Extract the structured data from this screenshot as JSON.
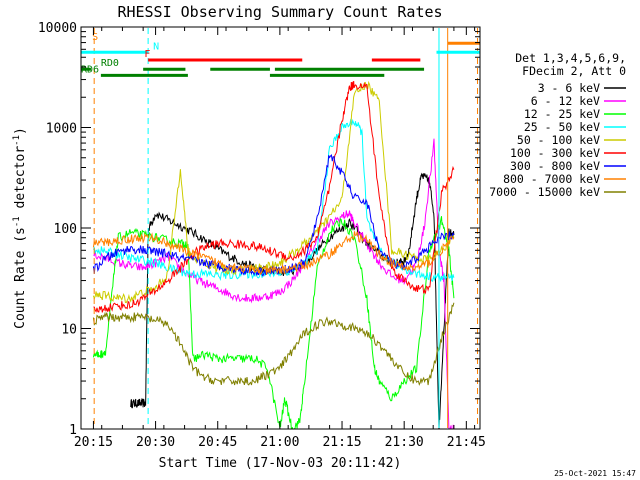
{
  "chart_data": {
    "type": "line",
    "title": "RHESSI Observing Summary Count Rates",
    "xlabel": "Start Time (17-Nov-03 20:11:42)",
    "ylabel_main": "Count Rate (s",
    "ylabel_exp1": "-1",
    "ylabel_mid": " detector",
    "ylabel_exp2": "-1",
    "ylabel_end": ")",
    "yscale": "log",
    "xlim": [
      20.2,
      21.805
    ],
    "ylim": [
      1,
      10000
    ],
    "xticks": [
      {
        "value": 20.25,
        "label": "20:15"
      },
      {
        "value": 20.5,
        "label": "20:30"
      },
      {
        "value": 20.75,
        "label": "20:45"
      },
      {
        "value": 21.0,
        "label": "21:00"
      },
      {
        "value": 21.25,
        "label": "21:15"
      },
      {
        "value": 21.5,
        "label": "21:30"
      },
      {
        "value": 21.75,
        "label": "21:45"
      }
    ],
    "yticks": [
      {
        "value": 1,
        "label": "1"
      },
      {
        "value": 10,
        "label": "10"
      },
      {
        "value": 100,
        "label": "100"
      },
      {
        "value": 1000,
        "label": "1000"
      },
      {
        "value": 10000,
        "label": "10000"
      }
    ],
    "legend": {
      "position": "right",
      "header": [
        "Det 1,3,4,5,6,9,",
        "FDecim 2, Att 0"
      ]
    },
    "series": [
      {
        "name": "3 - 6 keV",
        "color": "#000000",
        "x": [
          20.4,
          20.42,
          20.44,
          20.46,
          20.47,
          20.5,
          20.55,
          20.6,
          20.65,
          20.7,
          20.75,
          20.8,
          20.85,
          20.9,
          20.95,
          21.0,
          21.05,
          21.1,
          21.15,
          21.2,
          21.25,
          21.28,
          21.3,
          21.35,
          21.4,
          21.45,
          21.48,
          21.5,
          21.52,
          21.55,
          21.57,
          21.6,
          21.62,
          21.64,
          21.66,
          21.68,
          21.7
        ],
        "y": [
          1.8,
          1.8,
          1.8,
          1.8,
          95,
          140,
          120,
          105,
          90,
          75,
          62,
          52,
          45,
          40,
          38,
          36,
          38,
          44,
          60,
          82,
          100,
          115,
          100,
          70,
          55,
          45,
          45,
          46,
          60,
          200,
          330,
          300,
          140,
          1,
          10,
          90,
          85
        ]
      },
      {
        "name": "6 - 12 keV",
        "color": "#ff00ff",
        "x": [
          20.25,
          20.3,
          20.35,
          20.4,
          20.45,
          20.5,
          20.55,
          20.6,
          20.65,
          20.7,
          20.75,
          20.8,
          20.85,
          20.9,
          20.95,
          21.0,
          21.05,
          21.1,
          21.15,
          21.2,
          21.25,
          21.28,
          21.3,
          21.35,
          21.4,
          21.45,
          21.5,
          21.55,
          21.58,
          21.62,
          21.64,
          21.66,
          21.68,
          21.7
        ],
        "y": [
          55,
          50,
          45,
          42,
          40,
          45,
          52,
          40,
          32,
          28,
          25,
          22,
          20,
          20,
          21,
          23,
          30,
          45,
          75,
          110,
          130,
          140,
          110,
          70,
          45,
          33,
          30,
          45,
          100,
          700,
          60,
          30,
          1,
          1
        ]
      },
      {
        "name": "12 - 25 keV",
        "color": "#00ff00",
        "x": [
          20.25,
          20.28,
          20.3,
          20.33,
          20.35,
          20.4,
          20.45,
          20.5,
          20.55,
          20.6,
          20.63,
          20.65,
          20.7,
          20.75,
          20.8,
          20.85,
          20.9,
          20.95,
          21.0,
          21.02,
          21.05,
          21.08,
          21.1,
          21.15,
          21.2,
          21.25,
          21.3,
          21.35,
          21.38,
          21.4,
          21.45,
          21.5,
          21.55,
          21.6,
          21.65,
          21.68,
          21.7
        ],
        "y": [
          5.5,
          5.5,
          6,
          30,
          80,
          90,
          85,
          80,
          75,
          70,
          70,
          5,
          5.5,
          5,
          5,
          5,
          5,
          4,
          1,
          2,
          1,
          1.2,
          3,
          40,
          90,
          120,
          80,
          20,
          4,
          3,
          2,
          3,
          4,
          60,
          120,
          60,
          20
        ]
      },
      {
        "name": "25 - 50 keV",
        "color": "#00ffff",
        "x": [
          20.25,
          20.3,
          20.35,
          20.4,
          20.45,
          20.5,
          20.55,
          20.6,
          20.65,
          20.7,
          20.75,
          20.8,
          20.85,
          20.9,
          20.95,
          21.0,
          21.05,
          21.1,
          21.15,
          21.2,
          21.25,
          21.3,
          21.33,
          21.35,
          21.4,
          21.45,
          21.5,
          21.55,
          21.6,
          21.65,
          21.7
        ],
        "y": [
          62,
          58,
          55,
          50,
          48,
          45,
          40,
          37,
          35,
          35,
          34,
          34,
          35,
          35,
          35,
          36,
          38,
          45,
          60,
          600,
          1000,
          1150,
          900,
          120,
          60,
          45,
          40,
          35,
          33,
          32,
          32
        ]
      },
      {
        "name": "50 - 100 keV",
        "color": "#cccc00",
        "x": [
          20.25,
          20.3,
          20.35,
          20.4,
          20.45,
          20.5,
          20.55,
          20.6,
          20.63,
          20.65,
          20.7,
          20.75,
          20.8,
          20.85,
          20.9,
          20.95,
          21.0,
          21.05,
          21.1,
          21.15,
          21.2,
          21.25,
          21.3,
          21.35,
          21.4,
          21.45,
          21.5,
          21.55,
          21.6,
          21.65,
          21.7
        ],
        "y": [
          22,
          21,
          20,
          20,
          23,
          25,
          35,
          400,
          60,
          50,
          45,
          40,
          38,
          38,
          40,
          42,
          45,
          55,
          70,
          90,
          130,
          190,
          2200,
          2700,
          1800,
          60,
          55,
          50,
          48,
          60,
          80
        ]
      },
      {
        "name": "100 - 300 keV",
        "color": "#ff0000",
        "x": [
          20.25,
          20.3,
          20.35,
          20.4,
          20.45,
          20.5,
          20.55,
          20.6,
          20.65,
          20.7,
          20.75,
          20.8,
          20.85,
          20.9,
          20.95,
          21.0,
          21.05,
          21.1,
          21.15,
          21.2,
          21.25,
          21.28,
          21.3,
          21.35,
          21.4,
          21.45,
          21.5,
          21.55,
          21.6,
          21.65,
          21.7
        ],
        "y": [
          15,
          16,
          17,
          17,
          20,
          24,
          30,
          40,
          55,
          65,
          70,
          70,
          68,
          66,
          60,
          55,
          50,
          60,
          80,
          250,
          1200,
          2500,
          2700,
          2500,
          200,
          40,
          30,
          25,
          24,
          220,
          380
        ]
      },
      {
        "name": "300 - 800 keV",
        "color": "#0000ff",
        "x": [
          20.25,
          20.3,
          20.35,
          20.4,
          20.45,
          20.5,
          20.55,
          20.6,
          20.65,
          20.7,
          20.75,
          20.8,
          20.85,
          20.9,
          20.95,
          21.0,
          21.05,
          21.1,
          21.15,
          21.2,
          21.25,
          21.3,
          21.35,
          21.4,
          21.45,
          21.5,
          21.55,
          21.6,
          21.65,
          21.7
        ],
        "y": [
          38,
          50,
          58,
          62,
          60,
          58,
          55,
          50,
          48,
          45,
          42,
          40,
          38,
          37,
          37,
          38,
          40,
          45,
          120,
          550,
          350,
          200,
          180,
          60,
          45,
          40,
          50,
          65,
          80,
          85
        ]
      },
      {
        "name": "800 - 7000 keV",
        "color": "#ff8000",
        "x": [
          20.25,
          20.3,
          20.35,
          20.4,
          20.45,
          20.5,
          20.55,
          20.6,
          20.65,
          20.7,
          20.75,
          20.8,
          20.85,
          20.9,
          20.95,
          21.0,
          21.05,
          21.1,
          21.15,
          21.2,
          21.25,
          21.3,
          21.35,
          21.4,
          21.45,
          21.5,
          21.55,
          21.6,
          21.65,
          21.7
        ],
        "y": [
          70,
          72,
          75,
          78,
          80,
          78,
          70,
          62,
          55,
          50,
          45,
          42,
          40,
          38,
          37,
          38,
          40,
          42,
          48,
          55,
          70,
          85,
          75,
          55,
          45,
          40,
          40,
          45,
          60,
          80
        ]
      },
      {
        "name": "7000 - 15000 keV",
        "color": "#808000",
        "x": [
          20.25,
          20.3,
          20.35,
          20.4,
          20.45,
          20.5,
          20.55,
          20.6,
          20.65,
          20.7,
          20.75,
          20.8,
          20.85,
          20.9,
          20.95,
          21.0,
          21.05,
          21.1,
          21.15,
          21.2,
          21.25,
          21.3,
          21.35,
          21.4,
          21.45,
          21.5,
          21.55,
          21.6,
          21.65,
          21.7
        ],
        "y": [
          12,
          13,
          13,
          13,
          13,
          12,
          11,
          7,
          4,
          3.2,
          3,
          3,
          3,
          3,
          3.5,
          4,
          6,
          9,
          11,
          12,
          11,
          10,
          9,
          7,
          5,
          3.5,
          3,
          3,
          8,
          18
        ]
      }
    ],
    "flags": [
      {
        "label": "S",
        "color": "#ff8000",
        "labelX": 20.245,
        "bars": [
          [
            21.675,
            21.805
          ]
        ],
        "level": 6900
      },
      {
        "label": "N",
        "color": "#00ffff",
        "labelX": 20.49,
        "bars": [
          [
            20.2,
            20.47
          ],
          [
            21.63,
            21.805
          ]
        ],
        "level": 5600
      },
      {
        "label": "F",
        "color": "#ff0000",
        "labelX": 20.455,
        "bars": [
          [
            20.47,
            21.09
          ],
          [
            21.37,
            21.565
          ]
        ],
        "level": 4700
      },
      {
        "label": "RD0",
        "color": "#008000",
        "labelX": 20.28,
        "bars": [
          [
            20.2,
            20.24
          ],
          [
            20.45,
            20.62
          ],
          [
            20.72,
            20.96
          ],
          [
            20.98,
            21.58
          ]
        ],
        "level": 3800
      },
      {
        "label": "RD6",
        "color": "#008000",
        "labelX": 20.2,
        "bars": [
          [
            20.28,
            20.63
          ],
          [
            20.96,
            21.42
          ]
        ],
        "level": 3300
      }
    ],
    "markers": [
      {
        "x": 20.253,
        "color": "#ff8000",
        "style": "dashed"
      },
      {
        "x": 20.47,
        "color": "#00ffff",
        "style": "dashed"
      },
      {
        "x": 21.64,
        "color": "#00ffff",
        "style": "solid"
      },
      {
        "x": 21.675,
        "color": "#ff8000",
        "style": "solid"
      },
      {
        "x": 21.795,
        "color": "#ff8000",
        "style": "dashed"
      }
    ],
    "timestamp": "25-Oct-2021 15:47"
  }
}
